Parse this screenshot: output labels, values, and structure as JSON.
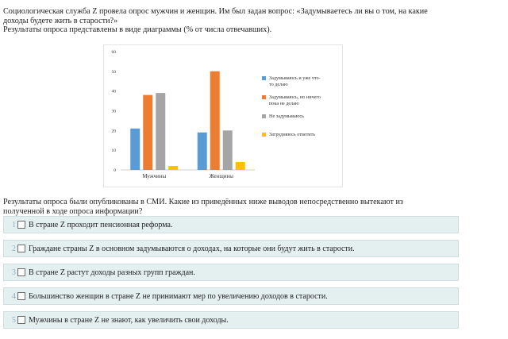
{
  "question": {
    "line1": "Социологическая служба Z провела опрос мужчин и женщин. Им был задан вопрос: «Задумываетесь ли вы о том, на какие",
    "line2": "доходы будете жить в старости?»",
    "line3": "Результаты опроса представлены в виде диаграммы (% от числа отвечавших)."
  },
  "chart_data": {
    "type": "bar",
    "categories": [
      "Мужчины",
      "Женщины"
    ],
    "series": [
      {
        "name": "Задумываюсь и уже что-то делаю",
        "label_lines": [
          "Задумываюсь и уже что-",
          "то делаю"
        ],
        "color": "#5b9bd5",
        "values": [
          21,
          19
        ]
      },
      {
        "name": "Задумываюсь, но ничего пока не делаю",
        "label_lines": [
          "Задумываюсь, но ничего",
          "пока не делаю"
        ],
        "color": "#ed7d31",
        "values": [
          38,
          50
        ]
      },
      {
        "name": "Не задумываюсь",
        "label_lines": [
          "Не задумываюсь"
        ],
        "color": "#a5a5a5",
        "values": [
          39,
          20
        ]
      },
      {
        "name": "Затрудняюсь ответить",
        "label_lines": [
          "Затрудняюсь ответить"
        ],
        "color": "#ffc000",
        "values": [
          2,
          4
        ]
      }
    ],
    "ylim": [
      0,
      60
    ],
    "yticks": [
      "0",
      "10",
      "20",
      "30",
      "40",
      "50",
      "60"
    ],
    "grid": false,
    "legend_position": "right"
  },
  "intro2": {
    "line1": "Результаты опроса были опубликованы в СМИ. Какие из приведённых ниже выводов непосредственно вытекают из",
    "line2": "полученной в ходе опроса информации?"
  },
  "options": [
    {
      "num": "1",
      "text": "В стране Z проходит пенсионная реформа."
    },
    {
      "num": "2",
      "text": "Граждане страны Z в основном задумываются о доходах, на которые они будут жить в старости."
    },
    {
      "num": "3",
      "text": "В стране Z растут доходы разных групп граждан."
    },
    {
      "num": "4",
      "text": "Большинство женщин в стране Z не принимают мер по увеличению доходов в старости."
    },
    {
      "num": "5",
      "text": "Мужчины в стране Z не знают, как увеличить свои доходы."
    }
  ]
}
